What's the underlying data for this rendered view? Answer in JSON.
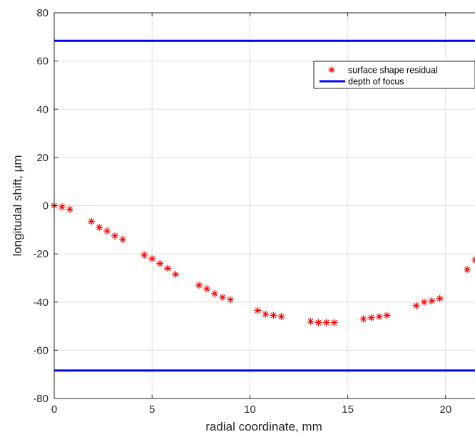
{
  "chart_data": {
    "type": "scatter",
    "title": "",
    "xlabel": "radial coordinate, mm",
    "ylabel": "longitudal shift, µm",
    "xlim": [
      0,
      21.5
    ],
    "ylim": [
      -80,
      80
    ],
    "x_ticks": [
      0,
      5,
      10,
      15,
      20
    ],
    "y_ticks": [
      80,
      60,
      40,
      20,
      0,
      -20,
      -40,
      -60,
      -80
    ],
    "grid": true,
    "legend_position": "top-right",
    "series": [
      {
        "name": "surface shape residual",
        "kind": "markers",
        "marker": "asterisk",
        "color": "#ff0000",
        "x": [
          0,
          0.4,
          0.8,
          1.9,
          2.3,
          2.7,
          3.1,
          3.5,
          4.6,
          5.0,
          5.4,
          5.8,
          6.2,
          7.4,
          7.8,
          8.2,
          8.6,
          9.0,
          10.4,
          10.8,
          11.2,
          11.6,
          13.1,
          13.5,
          13.9,
          14.3,
          15.8,
          16.2,
          16.6,
          17.0,
          18.5,
          18.9,
          19.3,
          19.7,
          21.1,
          21.5
        ],
        "y": [
          0,
          -0.5,
          -1.5,
          -6.5,
          -9,
          -10.5,
          -12.5,
          -14,
          -20.5,
          -22,
          -24,
          -26,
          -28.5,
          -33,
          -34.5,
          -36.5,
          -38,
          -39,
          -43.5,
          -45,
          -45.5,
          -46,
          -48,
          -48.5,
          -48.5,
          -48.5,
          -47,
          -46.5,
          -46,
          -45.5,
          -41.5,
          -40,
          -39.5,
          -38.5,
          -26.5,
          -22.5
        ]
      },
      {
        "name": "depth of focus",
        "kind": "hlines",
        "color": "#0000ff",
        "y": [
          68.4,
          -68.4
        ]
      }
    ]
  }
}
